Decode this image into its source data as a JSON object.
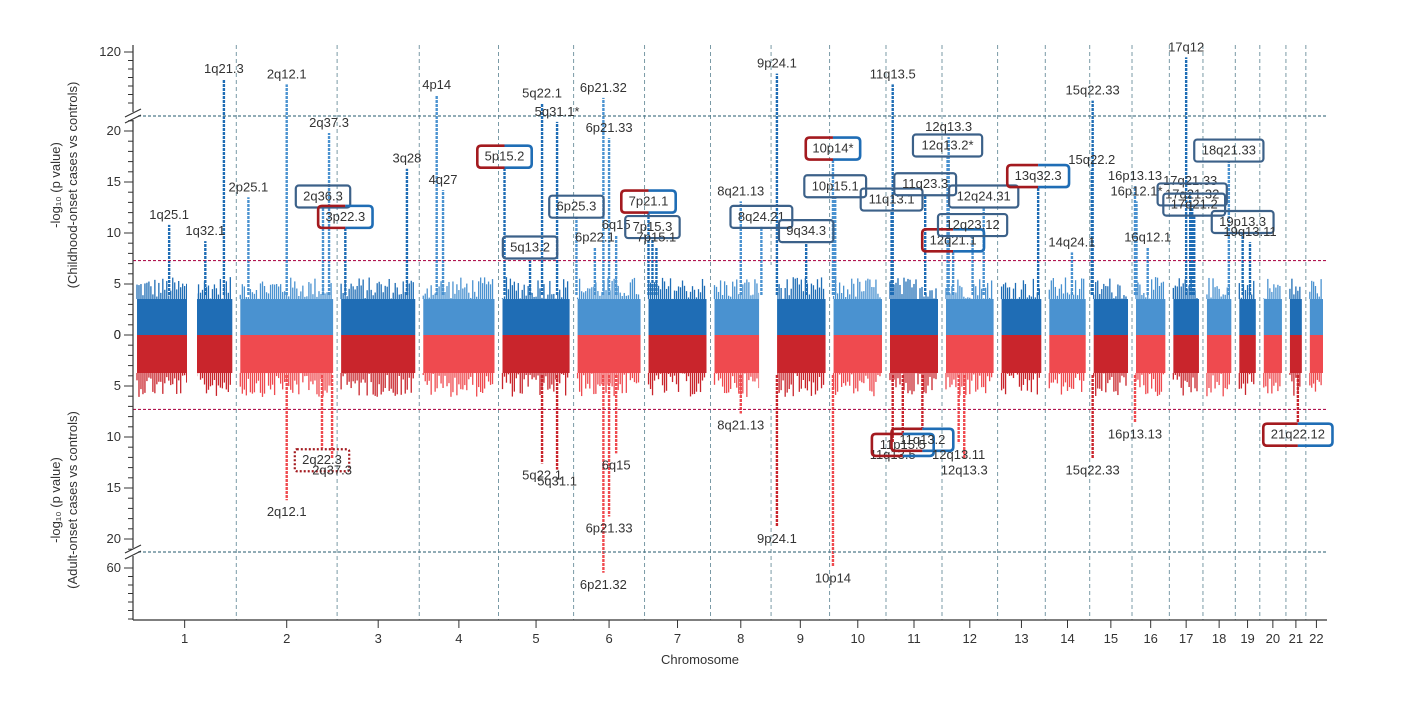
{
  "chart_data": {
    "type": "scatter",
    "subtype": "miami-plot",
    "title": "",
    "xlabel": "Chromosome",
    "ylabel_top": [
      "-log₁₀ (p value)",
      "(Childhood-onset cases vs controls)"
    ],
    "ylabel_bottom": [
      "-log₁₀ (p value)",
      "(Adult-onset cases vs controls)"
    ],
    "y_top_ticks": [
      "0",
      "5",
      "10",
      "15",
      "20",
      "120"
    ],
    "y_bottom_ticks": [
      "0",
      "5",
      "10",
      "15",
      "20",
      "60"
    ],
    "significance_threshold": 7.3,
    "axis_break": [
      22,
      100
    ],
    "grid": "vertical dashed lines between chromosomes",
    "chromosomes": [
      "1",
      "2",
      "3",
      "4",
      "5",
      "6",
      "7",
      "8",
      "9",
      "10",
      "11",
      "12",
      "13",
      "14",
      "15",
      "16",
      "17",
      "18",
      "19",
      "20",
      "21",
      "22"
    ],
    "colors": {
      "top_dark": "#1f6db5",
      "top_light": "#4a92d0",
      "bottom_dark": "#c9252c",
      "bottom_light": "#ef4a4f",
      "threshold": "#b0144f",
      "break_line": "#4f7a8a",
      "grid": "#7a9aa6",
      "box_blue": "#3c6189",
      "box_red": "#a31a1f"
    },
    "peaks_top": [
      {
        "chr": "1",
        "pos": 0.88,
        "value": 110,
        "label": "1q21.3"
      },
      {
        "chr": "1",
        "pos": 0.35,
        "value": 10.8,
        "label": "1q25.1"
      },
      {
        "chr": "1",
        "pos": 0.7,
        "value": 9.2,
        "label": "1q32.1"
      },
      {
        "chr": "2",
        "pos": 0.12,
        "value": 13.5,
        "label": "2p25.1"
      },
      {
        "chr": "2",
        "pos": 0.5,
        "value": 108,
        "label": "2q12.1"
      },
      {
        "chr": "2",
        "pos": 0.92,
        "value": 19.8,
        "label": "2q37.3"
      },
      {
        "chr": "2",
        "pos": 0.86,
        "value": 12.6,
        "label": "2q36.3"
      },
      {
        "chr": "3",
        "pos": 0.1,
        "value": 10.6,
        "label": "3p22.3"
      },
      {
        "chr": "3",
        "pos": 0.85,
        "value": 16.3,
        "label": "3q28"
      },
      {
        "chr": "4",
        "pos": 0.22,
        "value": 104,
        "label": "4p14"
      },
      {
        "chr": "4",
        "pos": 0.3,
        "value": 14.2,
        "label": "4q27"
      },
      {
        "chr": "5",
        "pos": 0.08,
        "value": 16.5,
        "label": "5p15.2"
      },
      {
        "chr": "5",
        "pos": 0.42,
        "value": 7.6,
        "label": "5q13.2"
      },
      {
        "chr": "5",
        "pos": 0.58,
        "value": 101,
        "label": "5q22.1"
      },
      {
        "chr": "5",
        "pos": 0.78,
        "value": 20.9,
        "label": "5q31.1*"
      },
      {
        "chr": "6",
        "pos": 0.04,
        "value": 11.6,
        "label": "6p25.3"
      },
      {
        "chr": "6",
        "pos": 0.3,
        "value": 8.6,
        "label": "6p22.1"
      },
      {
        "chr": "6",
        "pos": 0.42,
        "value": 103,
        "label": "6p21.32"
      },
      {
        "chr": "6",
        "pos": 0.5,
        "value": 19.3,
        "label": "6p21.33"
      },
      {
        "chr": "6",
        "pos": 0.6,
        "value": 9.8,
        "label": "6q15"
      },
      {
        "chr": "7",
        "pos": 0.06,
        "value": 12.1,
        "label": "7p21.1"
      },
      {
        "chr": "7",
        "pos": 0.12,
        "value": 9.6,
        "label": "7p15.3"
      },
      {
        "chr": "7",
        "pos": 0.18,
        "value": 8.6,
        "label": "7p15.1"
      },
      {
        "chr": "8",
        "pos": 0.5,
        "value": 13.1,
        "label": "8q21.13"
      },
      {
        "chr": "8",
        "pos": 0.84,
        "value": 10.6,
        "label": "8q24.21"
      },
      {
        "chr": "9",
        "pos": 0.1,
        "value": 112,
        "label": "9p24.1"
      },
      {
        "chr": "9",
        "pos": 0.6,
        "value": 9.2,
        "label": "9q34.3"
      },
      {
        "chr": "10",
        "pos": 0.06,
        "value": 17.3,
        "label": "10p14*"
      },
      {
        "chr": "10",
        "pos": 0.1,
        "value": 13.6,
        "label": "10p15.1"
      },
      {
        "chr": "11",
        "pos": 0.1,
        "value": 12.3,
        "label": "11q13.1"
      },
      {
        "chr": "11",
        "pos": 0.12,
        "value": 108,
        "label": "11q13.5"
      },
      {
        "chr": "11",
        "pos": 0.7,
        "value": 13.8,
        "label": "11q23.3"
      },
      {
        "chr": "12",
        "pos": 0.1,
        "value": 17.6,
        "label": "12q13.2*"
      },
      {
        "chr": "12",
        "pos": 0.12,
        "value": 19.4,
        "label": "12q13.3"
      },
      {
        "chr": "12",
        "pos": 0.2,
        "value": 8.3,
        "label": "12q21.1"
      },
      {
        "chr": "12",
        "pos": 0.55,
        "value": 9.8,
        "label": "12q23.12"
      },
      {
        "chr": "12",
        "pos": 0.75,
        "value": 12.6,
        "label": "12q24.31"
      },
      {
        "chr": "13",
        "pos": 0.85,
        "value": 14.6,
        "label": "13q32.3"
      },
      {
        "chr": "14",
        "pos": 0.6,
        "value": 8.1,
        "label": "14q24.1"
      },
      {
        "chr": "15",
        "pos": 0.05,
        "value": 16.2,
        "label": "15q22.2"
      },
      {
        "chr": "15",
        "pos": 0.07,
        "value": 102,
        "label": "15q22.33"
      },
      {
        "chr": "16",
        "pos": 0.08,
        "value": 14.6,
        "label": "16p13.13"
      },
      {
        "chr": "16",
        "pos": 0.12,
        "value": 13.1,
        "label": "16p12.1*"
      },
      {
        "chr": "16",
        "pos": 0.42,
        "value": 8.6,
        "label": "16q12.1"
      },
      {
        "chr": "17",
        "pos": 0.5,
        "value": 118,
        "label": "17q12"
      },
      {
        "chr": "17",
        "pos": 0.62,
        "value": 14.1,
        "label": "17q21.33"
      },
      {
        "chr": "17",
        "pos": 0.68,
        "value": 12.8,
        "label": "17q21.32"
      },
      {
        "chr": "17",
        "pos": 0.74,
        "value": 11.8,
        "label": "17q21.2"
      },
      {
        "chr": "18",
        "pos": 0.8,
        "value": 17.1,
        "label": "18q21.33"
      },
      {
        "chr": "19",
        "pos": 0.3,
        "value": 10.1,
        "label": "19p13.3"
      },
      {
        "chr": "19",
        "pos": 0.6,
        "value": 9.1,
        "label": "19q13.11"
      }
    ],
    "peaks_bottom": [
      {
        "chr": "2",
        "pos": 0.5,
        "value": 16.2,
        "label": "2q12.1"
      },
      {
        "chr": "2",
        "pos": 0.85,
        "value": 11.1,
        "label": "2q22.3"
      },
      {
        "chr": "2",
        "pos": 0.95,
        "value": 12.1,
        "label": "2q37.3"
      },
      {
        "chr": "5",
        "pos": 0.58,
        "value": 12.6,
        "label": "5q22.1"
      },
      {
        "chr": "5",
        "pos": 0.78,
        "value": 13.2,
        "label": "5q31.1"
      },
      {
        "chr": "6",
        "pos": 0.42,
        "value": 63,
        "label": "6p21.32"
      },
      {
        "chr": "6",
        "pos": 0.5,
        "value": 17.8,
        "label": "6p21.33"
      },
      {
        "chr": "6",
        "pos": 0.6,
        "value": 11.6,
        "label": "6q15"
      },
      {
        "chr": "8",
        "pos": 0.5,
        "value": 7.7,
        "label": "8q21.13"
      },
      {
        "chr": "9",
        "pos": 0.1,
        "value": 18.8,
        "label": "9p24.1"
      },
      {
        "chr": "10",
        "pos": 0.06,
        "value": 59,
        "label": "10p14"
      },
      {
        "chr": "11",
        "pos": 0.12,
        "value": 10.6,
        "label": "11q13.5"
      },
      {
        "chr": "11",
        "pos": 0.3,
        "value": 9.6,
        "label": "11p15.5"
      },
      {
        "chr": "11",
        "pos": 0.65,
        "value": 9.1,
        "label": "11q13.2"
      },
      {
        "chr": "12",
        "pos": 0.3,
        "value": 10.6,
        "label": "12q13.11"
      },
      {
        "chr": "12",
        "pos": 0.4,
        "value": 12.1,
        "label": "12q13.3"
      },
      {
        "chr": "15",
        "pos": 0.07,
        "value": 12.1,
        "label": "15q22.33"
      },
      {
        "chr": "16",
        "pos": 0.08,
        "value": 8.6,
        "label": "16p13.13"
      },
      {
        "chr": "21",
        "pos": 0.6,
        "value": 8.6,
        "label": "21q22.12"
      }
    ]
  }
}
